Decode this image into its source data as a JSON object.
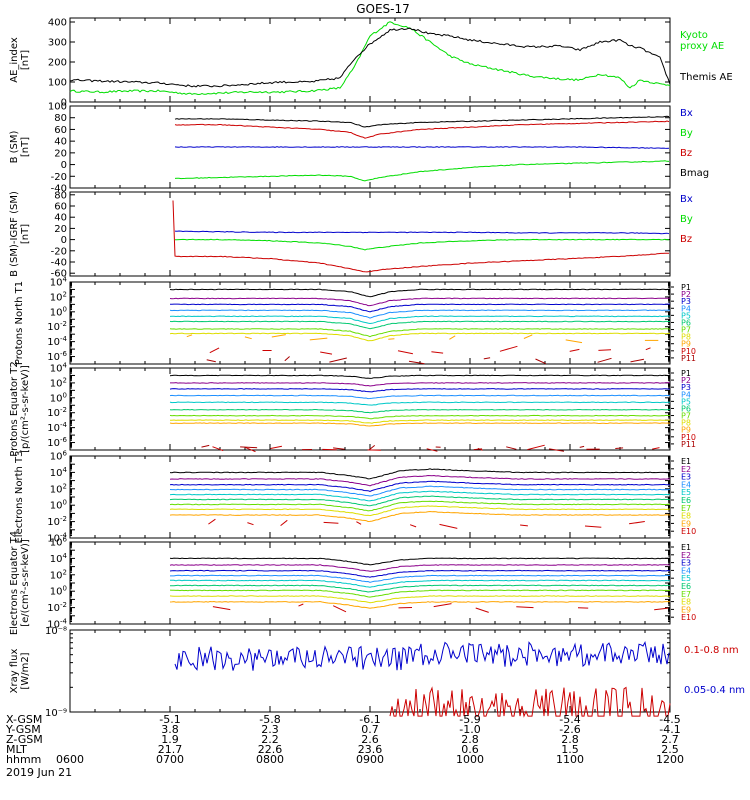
{
  "title": "GOES-17",
  "x_axis": {
    "tick_hours": [
      6,
      7,
      8,
      9,
      10,
      11,
      12
    ],
    "tick_labels": [
      "0600",
      "0700",
      "0800",
      "0900",
      "1000",
      "1100",
      "1200"
    ],
    "range_hours": [
      6,
      12
    ],
    "footer_rows": [
      {
        "label": "X-GSM",
        "values": [
          "",
          "-5.1",
          "-5.8",
          "-6.1",
          "-5.9",
          "-5.4",
          "-4.5"
        ]
      },
      {
        "label": "Y-GSM",
        "values": [
          "",
          "3.8",
          "2.3",
          "0.7",
          "-1.0",
          "-2.6",
          "-4.1"
        ]
      },
      {
        "label": "Z-GSM",
        "values": [
          "",
          "1.9",
          "2.2",
          "2.6",
          "2.8",
          "2.8",
          "2.7"
        ]
      },
      {
        "label": "MLT",
        "values": [
          "",
          "21.7",
          "22.6",
          "23.6",
          "0.6",
          "1.5",
          "2.5"
        ]
      },
      {
        "label": "hhmm",
        "values": [
          "0600",
          "0700",
          "0800",
          "0900",
          "1000",
          "1100",
          "1200"
        ]
      }
    ],
    "date": "2019 Jun 21"
  },
  "chart_data": [
    {
      "type": "line",
      "ylabel": "AE_index [nT]",
      "ylim": [
        0,
        420
      ],
      "yticks": [
        0,
        100,
        200,
        300,
        400
      ],
      "series": [
        {
          "name": "Kyoto proxy AE",
          "color": "#00dd00",
          "x": [
            6.0,
            6.3,
            6.6,
            6.9,
            7.2,
            7.5,
            7.8,
            8.1,
            8.4,
            8.7,
            8.85,
            9.0,
            9.2,
            9.4,
            9.6,
            9.8,
            10.0,
            10.3,
            10.6,
            10.9,
            11.1,
            11.3,
            11.5,
            11.6,
            11.7,
            11.9,
            12.0
          ],
          "y": [
            55,
            50,
            55,
            55,
            40,
            45,
            50,
            50,
            55,
            70,
            180,
            330,
            400,
            370,
            300,
            230,
            190,
            160,
            130,
            115,
            110,
            140,
            120,
            70,
            110,
            90,
            85
          ]
        },
        {
          "name": "Themis AE",
          "color": "#000000",
          "x": [
            6.0,
            6.3,
            6.6,
            6.9,
            7.2,
            7.5,
            7.8,
            8.1,
            8.4,
            8.7,
            8.85,
            9.0,
            9.2,
            9.4,
            9.6,
            9.8,
            10.0,
            10.3,
            10.6,
            10.9,
            11.1,
            11.3,
            11.5,
            11.6,
            11.7,
            11.9,
            12.0
          ],
          "y": [
            110,
            105,
            100,
            95,
            80,
            80,
            90,
            100,
            100,
            120,
            220,
            290,
            360,
            370,
            340,
            330,
            310,
            290,
            275,
            280,
            260,
            300,
            310,
            280,
            270,
            220,
            90
          ]
        }
      ]
    },
    {
      "type": "line",
      "ylabel": "B (SM) [nT]",
      "ylim": [
        -40,
        100
      ],
      "yticks": [
        -40,
        -20,
        0,
        20,
        40,
        60,
        80,
        100
      ],
      "series": [
        {
          "name": "Bx",
          "color": "#0000cc",
          "x": [
            7.05,
            7.5,
            8.0,
            8.5,
            8.9,
            9.1,
            9.5,
            10.0,
            10.5,
            11.0,
            11.5,
            12.0
          ],
          "y": [
            30,
            30,
            30,
            30,
            30,
            30,
            30,
            30,
            30,
            30,
            29,
            28
          ]
        },
        {
          "name": "By",
          "color": "#00dd00",
          "x": [
            7.05,
            7.5,
            8.0,
            8.5,
            8.8,
            8.95,
            9.1,
            9.5,
            10.0,
            10.5,
            11.0,
            11.5,
            12.0
          ],
          "y": [
            -24,
            -22,
            -20,
            -18,
            -20,
            -28,
            -22,
            -12,
            -5,
            0,
            2,
            4,
            6
          ]
        },
        {
          "name": "Bz",
          "color": "#cc0000",
          "x": [
            7.05,
            7.5,
            8.0,
            8.5,
            8.8,
            8.95,
            9.1,
            9.5,
            10.0,
            10.5,
            11.0,
            11.5,
            12.0
          ],
          "y": [
            68,
            68,
            64,
            60,
            55,
            45,
            52,
            60,
            64,
            68,
            70,
            72,
            74
          ]
        },
        {
          "name": "Bmag",
          "color": "#000000",
          "x": [
            7.05,
            7.5,
            8.0,
            8.5,
            8.8,
            8.95,
            9.1,
            9.5,
            10.0,
            10.5,
            11.0,
            11.5,
            12.0
          ],
          "y": [
            78,
            78,
            76,
            74,
            72,
            64,
            68,
            72,
            74,
            76,
            78,
            80,
            82
          ]
        }
      ]
    },
    {
      "type": "line",
      "ylabel": "B (SM)-IGRF (SM) [nT]",
      "ylim": [
        -65,
        85
      ],
      "yticks": [
        -60,
        -40,
        -20,
        0,
        20,
        40,
        60,
        80
      ],
      "series": [
        {
          "name": "Bx",
          "color": "#0000cc",
          "x": [
            7.05,
            7.5,
            8.0,
            8.5,
            9.0,
            9.5,
            10.0,
            10.5,
            11.0,
            11.5,
            12.0
          ],
          "y": [
            15,
            14,
            13,
            13,
            13,
            13,
            13,
            12,
            12,
            12,
            11
          ]
        },
        {
          "name": "By",
          "color": "#00dd00",
          "x": [
            7.05,
            7.5,
            8.0,
            8.5,
            8.8,
            8.95,
            9.1,
            9.5,
            10.0,
            10.5,
            11.0,
            11.5,
            12.0
          ],
          "y": [
            0,
            0,
            -2,
            -6,
            -12,
            -18,
            -14,
            -6,
            -2,
            0,
            0,
            0,
            0
          ]
        },
        {
          "name": "Bz",
          "color": "#cc0000",
          "x": [
            7.03,
            7.05,
            7.5,
            8.0,
            8.5,
            8.8,
            8.95,
            9.1,
            9.5,
            10.0,
            10.5,
            11.0,
            11.5,
            12.0
          ],
          "y": [
            70,
            -30,
            -30,
            -34,
            -42,
            -52,
            -58,
            -54,
            -48,
            -42,
            -38,
            -34,
            -30,
            -24
          ]
        }
      ]
    },
    {
      "type": "line",
      "log": true,
      "ylabel": "Protons North T1",
      "ylim_exp": [
        -7,
        4
      ],
      "tick_exps": [
        -6,
        -4,
        -2,
        0,
        2,
        4
      ],
      "x": [
        7.0,
        7.5,
        8.0,
        8.5,
        8.8,
        9.0,
        9.2,
        9.5,
        10.0,
        10.5,
        11.0,
        11.5,
        12.0
      ],
      "dip": [
        0,
        0,
        0,
        0,
        -0.3,
        -1.0,
        -0.3,
        0,
        0,
        0,
        0,
        0,
        0
      ],
      "series": [
        {
          "name": "P1",
          "color": "#000000",
          "base": 3.0
        },
        {
          "name": "P2",
          "color": "#8b008b",
          "base": 1.8
        },
        {
          "name": "P3",
          "color": "#0000cc",
          "base": 1.0
        },
        {
          "name": "P4",
          "color": "#1e90ff",
          "base": 0.2
        },
        {
          "name": "P5",
          "color": "#00c8c8",
          "base": -0.6
        },
        {
          "name": "P6",
          "color": "#00c870",
          "base": -1.3
        },
        {
          "name": "P7",
          "color": "#66dd00",
          "base": -2.3
        },
        {
          "name": "P8",
          "color": "#dddd00",
          "base": -2.9
        },
        {
          "name": "P9",
          "color": "#ffa500",
          "base": -3.6,
          "sparse": true
        },
        {
          "name": "P10",
          "color": "#cc0000",
          "base": -5.2,
          "sparse": true
        },
        {
          "name": "P11",
          "color": "#aa0000",
          "base": -6.5,
          "sparse": true
        }
      ]
    },
    {
      "type": "line",
      "log": true,
      "ylabel": "Protons Equator T2 [p/(cm²-s-sr-keV)]",
      "ylim_exp": [
        -7,
        4
      ],
      "tick_exps": [
        -6,
        -4,
        -2,
        0,
        2,
        4
      ],
      "x": [
        7.0,
        7.5,
        8.0,
        8.5,
        8.8,
        9.0,
        9.2,
        9.5,
        10.0,
        10.5,
        11.0,
        11.5,
        12.0
      ],
      "dip": [
        0,
        0,
        0,
        0,
        -0.1,
        -0.4,
        -0.1,
        0,
        0,
        0,
        0,
        0,
        0
      ],
      "series": [
        {
          "name": "P1",
          "color": "#000000",
          "base": 3.0
        },
        {
          "name": "P2",
          "color": "#8b008b",
          "base": 2.0
        },
        {
          "name": "P3",
          "color": "#0000cc",
          "base": 1.2
        },
        {
          "name": "P4",
          "color": "#1e90ff",
          "base": 0.3
        },
        {
          "name": "P5",
          "color": "#00c8c8",
          "base": -0.6
        },
        {
          "name": "P6",
          "color": "#00c870",
          "base": -1.6
        },
        {
          "name": "P7",
          "color": "#66dd00",
          "base": -2.4
        },
        {
          "name": "P8",
          "color": "#dddd00",
          "base": -3.0
        },
        {
          "name": "P9",
          "color": "#ffa500",
          "base": -3.4
        },
        {
          "name": "P10",
          "color": "#cc0000",
          "base": -6.8,
          "sparse": true
        },
        {
          "name": "P11",
          "color": "#aa0000",
          "base": -6.8,
          "sparse": true
        }
      ]
    },
    {
      "type": "line",
      "log": true,
      "ylabel": "Electrons North T3",
      "ylim_exp": [
        -4,
        6
      ],
      "tick_exps": [
        -4,
        -2,
        0,
        2,
        4,
        6
      ],
      "x": [
        7.0,
        7.5,
        8.0,
        8.5,
        8.8,
        9.0,
        9.3,
        9.6,
        10.0,
        10.5,
        11.0,
        11.5,
        12.0
      ],
      "dip": [
        0,
        0,
        0,
        0,
        -0.4,
        -0.8,
        0.2,
        0.4,
        0.2,
        0,
        0,
        0,
        0
      ],
      "series": [
        {
          "name": "E1",
          "color": "#000000",
          "base": 4.0
        },
        {
          "name": "E2",
          "color": "#8b008b",
          "base": 3.2
        },
        {
          "name": "E3",
          "color": "#0000cc",
          "base": 2.5
        },
        {
          "name": "E4",
          "color": "#1e90ff",
          "base": 1.9
        },
        {
          "name": "E5",
          "color": "#00c8c8",
          "base": 1.3
        },
        {
          "name": "E6",
          "color": "#00c870",
          "base": 0.7
        },
        {
          "name": "E7",
          "color": "#66dd00",
          "base": 0.1
        },
        {
          "name": "E8",
          "color": "#dddd00",
          "base": -0.5
        },
        {
          "name": "E9",
          "color": "#ffa500",
          "base": -1.2
        },
        {
          "name": "E10",
          "color": "#cc0000",
          "base": -2.3,
          "sparse": true
        }
      ]
    },
    {
      "type": "line",
      "log": true,
      "ylabel": "Electrons Equator T4 [e/(cm²-s-sr-keV)]",
      "ylim_exp": [
        -4,
        6
      ],
      "tick_exps": [
        -4,
        -2,
        0,
        2,
        4,
        6
      ],
      "x": [
        7.0,
        7.5,
        8.0,
        8.5,
        8.8,
        9.0,
        9.3,
        9.6,
        10.0,
        10.5,
        11.0,
        11.5,
        12.0
      ],
      "dip": [
        0,
        0,
        0,
        0,
        -0.4,
        -0.8,
        -0.2,
        0,
        0,
        0,
        0,
        0,
        0
      ],
      "series": [
        {
          "name": "E1",
          "color": "#000000",
          "base": 4.0
        },
        {
          "name": "E2",
          "color": "#8b008b",
          "base": 3.2
        },
        {
          "name": "E3",
          "color": "#0000cc",
          "base": 2.5
        },
        {
          "name": "E4",
          "color": "#1e90ff",
          "base": 1.9
        },
        {
          "name": "E5",
          "color": "#00c8c8",
          "base": 1.3
        },
        {
          "name": "E6",
          "color": "#00c870",
          "base": 0.7
        },
        {
          "name": "E7",
          "color": "#66dd00",
          "base": 0.1
        },
        {
          "name": "E8",
          "color": "#dddd00",
          "base": -0.6
        },
        {
          "name": "E9",
          "color": "#ffa500",
          "base": -1.3
        },
        {
          "name": "E10",
          "color": "#cc0000",
          "base": -2.0,
          "sparse": true
        }
      ]
    },
    {
      "type": "line",
      "log": true,
      "ylabel": "Xray flux [W/m2]",
      "ylim_exp": [
        -9,
        -8
      ],
      "tick_labels": [
        "10⁻⁸",
        "10⁻⁹"
      ],
      "series": [
        {
          "name": "0.1-0.8 nm",
          "color": "#cc0000",
          "start": 9.2,
          "level_exp": -9.0,
          "peak_exp": -8.7
        },
        {
          "name": "0.05-0.4 nm",
          "color": "#0000cc",
          "start": 7.05,
          "level_exp": -8.35,
          "amp": 0.15
        }
      ]
    }
  ]
}
